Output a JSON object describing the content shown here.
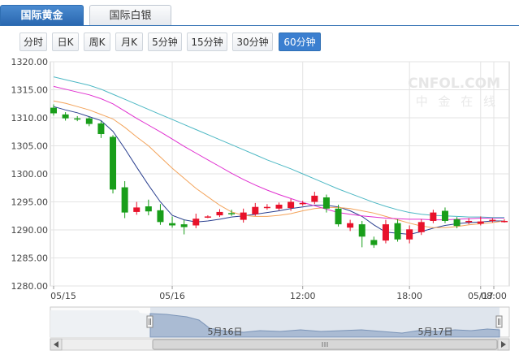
{
  "tabs": [
    {
      "label": "国际黄金",
      "active": true
    },
    {
      "label": "国际白银",
      "active": false
    }
  ],
  "periods": [
    {
      "label": "分时",
      "active": false
    },
    {
      "label": "日K",
      "active": false
    },
    {
      "label": "周K",
      "active": false
    },
    {
      "label": "月K",
      "active": false
    },
    {
      "label": "5分钟",
      "active": false
    },
    {
      "label": "15分钟",
      "active": false
    },
    {
      "label": "30分钟",
      "active": false
    },
    {
      "label": "60分钟",
      "active": true
    }
  ],
  "watermark": {
    "brand": "CNFOL.COM",
    "sub": "中 金 在 线"
  },
  "navigator": {
    "labels": [
      "5月16日",
      "5月17日"
    ],
    "scroll_icon": "grip-icon"
  },
  "colors": {
    "up": "#e8112a",
    "down": "#199e1a",
    "ma5": "#2a3f8f",
    "ma10": "#f3a35a",
    "ma20": "#e02fd0",
    "ma30": "#4db8c4"
  },
  "chart_data": {
    "type": "candlestick",
    "ylim": [
      1280,
      1320
    ],
    "yticks": [
      "1280.00",
      "1285.00",
      "1290.00",
      "1295.00",
      "1300.00",
      "1305.00",
      "1310.00",
      "1315.00",
      "1320.00"
    ],
    "xticks": [
      "05/15",
      "05/16",
      "12:00",
      "18:00",
      "05/17",
      "08:00"
    ],
    "candles": [
      {
        "o": 1311.8,
        "c": 1310.8,
        "h": 1312.4,
        "l": 1310.4
      },
      {
        "o": 1310.6,
        "c": 1309.9,
        "h": 1311.0,
        "l": 1309.5
      },
      {
        "o": 1309.9,
        "c": 1309.8,
        "h": 1310.3,
        "l": 1309.4
      },
      {
        "o": 1309.9,
        "c": 1308.9,
        "h": 1310.2,
        "l": 1308.5
      },
      {
        "o": 1309.0,
        "c": 1307.1,
        "h": 1309.4,
        "l": 1306.4
      },
      {
        "o": 1306.6,
        "c": 1297.2,
        "h": 1306.9,
        "l": 1296.5
      },
      {
        "o": 1297.6,
        "c": 1293.1,
        "h": 1298.7,
        "l": 1292.1
      },
      {
        "o": 1293.2,
        "c": 1294.0,
        "h": 1295.0,
        "l": 1292.7
      },
      {
        "o": 1294.2,
        "c": 1293.3,
        "h": 1295.4,
        "l": 1292.6
      },
      {
        "o": 1293.5,
        "c": 1291.4,
        "h": 1294.6,
        "l": 1290.9
      },
      {
        "o": 1291.2,
        "c": 1290.8,
        "h": 1292.4,
        "l": 1290.4
      },
      {
        "o": 1291.0,
        "c": 1290.5,
        "h": 1291.8,
        "l": 1289.2
      },
      {
        "o": 1290.8,
        "c": 1292.0,
        "h": 1292.9,
        "l": 1290.3
      },
      {
        "o": 1292.3,
        "c": 1292.4,
        "h": 1292.6,
        "l": 1292.1
      },
      {
        "o": 1292.6,
        "c": 1293.2,
        "h": 1293.7,
        "l": 1292.3
      },
      {
        "o": 1293.0,
        "c": 1292.8,
        "h": 1293.6,
        "l": 1292.5
      },
      {
        "o": 1291.8,
        "c": 1293.1,
        "h": 1293.8,
        "l": 1291.3
      },
      {
        "o": 1292.8,
        "c": 1294.1,
        "h": 1294.8,
        "l": 1292.5
      },
      {
        "o": 1293.9,
        "c": 1294.1,
        "h": 1294.6,
        "l": 1293.6
      },
      {
        "o": 1293.8,
        "c": 1294.5,
        "h": 1294.9,
        "l": 1293.5
      },
      {
        "o": 1293.9,
        "c": 1295.0,
        "h": 1295.5,
        "l": 1293.4
      },
      {
        "o": 1294.7,
        "c": 1294.8,
        "h": 1295.2,
        "l": 1294.3
      },
      {
        "o": 1295.0,
        "c": 1296.1,
        "h": 1296.8,
        "l": 1294.6
      },
      {
        "o": 1295.8,
        "c": 1293.8,
        "h": 1296.3,
        "l": 1293.1
      },
      {
        "o": 1293.8,
        "c": 1291.0,
        "h": 1294.5,
        "l": 1290.6
      },
      {
        "o": 1290.4,
        "c": 1291.2,
        "h": 1291.8,
        "l": 1289.8
      },
      {
        "o": 1291.0,
        "c": 1288.8,
        "h": 1291.6,
        "l": 1286.9
      },
      {
        "o": 1288.2,
        "c": 1287.3,
        "h": 1288.8,
        "l": 1286.8
      },
      {
        "o": 1288.1,
        "c": 1291.0,
        "h": 1291.8,
        "l": 1287.6
      },
      {
        "o": 1291.2,
        "c": 1288.3,
        "h": 1291.9,
        "l": 1287.9
      },
      {
        "o": 1288.3,
        "c": 1290.1,
        "h": 1290.8,
        "l": 1287.6
      },
      {
        "o": 1289.6,
        "c": 1291.4,
        "h": 1291.9,
        "l": 1289.1
      },
      {
        "o": 1291.6,
        "c": 1293.1,
        "h": 1293.6,
        "l": 1291.2
      },
      {
        "o": 1293.4,
        "c": 1291.6,
        "h": 1294.0,
        "l": 1291.2
      },
      {
        "o": 1291.9,
        "c": 1290.7,
        "h": 1292.3,
        "l": 1290.3
      },
      {
        "o": 1291.4,
        "c": 1291.6,
        "h": 1292.1,
        "l": 1291.0
      },
      {
        "o": 1291.1,
        "c": 1291.5,
        "h": 1292.4,
        "l": 1290.8
      },
      {
        "o": 1291.7,
        "c": 1291.8,
        "h": 1292.1,
        "l": 1291.3
      },
      {
        "o": 1291.6,
        "c": 1291.6,
        "h": 1291.9,
        "l": 1291.3
      }
    ],
    "ma_series": [
      {
        "key": "ma5",
        "values": [
          1312.0,
          1311.4,
          1310.9,
          1310.2,
          1309.5,
          1307.6,
          1304.5,
          1301.2,
          1298.0,
          1295.0,
          1292.6,
          1291.8,
          1291.4,
          1291.6,
          1291.9,
          1292.3,
          1292.5,
          1292.8,
          1293.1,
          1293.4,
          1293.8,
          1294.1,
          1294.4,
          1294.4,
          1294.1,
          1293.4,
          1292.4,
          1290.9,
          1289.6,
          1289.4,
          1289.2,
          1289.7,
          1290.3,
          1290.8,
          1291.1,
          1291.3,
          1291.4,
          1291.6,
          1291.6
        ]
      },
      {
        "key": "ma10",
        "values": [
          1313.0,
          1312.6,
          1312.0,
          1311.4,
          1310.6,
          1309.8,
          1308.3,
          1306.6,
          1305.0,
          1303.0,
          1301.0,
          1299.2,
          1297.4,
          1295.9,
          1294.4,
          1293.2,
          1292.6,
          1292.4,
          1292.4,
          1292.6,
          1292.9,
          1293.4,
          1293.8,
          1294.0,
          1294.0,
          1293.8,
          1293.4,
          1293.0,
          1292.4,
          1291.8,
          1291.2,
          1290.7,
          1290.4,
          1290.4,
          1290.6,
          1290.9,
          1291.1,
          1291.3,
          1291.6
        ]
      },
      {
        "key": "ma20",
        "values": [
          1315.6,
          1315.1,
          1314.6,
          1314.1,
          1313.4,
          1312.5,
          1311.2,
          1309.9,
          1308.7,
          1307.5,
          1306.2,
          1304.9,
          1303.7,
          1302.5,
          1301.3,
          1300.1,
          1299.0,
          1298.0,
          1297.1,
          1296.3,
          1295.6,
          1294.9,
          1294.3,
          1293.7,
          1293.1,
          1292.8,
          1292.5,
          1292.3,
          1292.1,
          1292.0,
          1291.9,
          1291.9,
          1291.8,
          1291.8,
          1291.9,
          1292.0,
          1292.1,
          1292.1,
          1292.1
        ]
      },
      {
        "key": "ma30",
        "values": [
          1317.3,
          1316.8,
          1316.3,
          1315.8,
          1315.1,
          1314.2,
          1313.3,
          1312.4,
          1311.5,
          1310.6,
          1309.7,
          1308.8,
          1307.9,
          1307.0,
          1306.1,
          1305.2,
          1304.3,
          1303.4,
          1302.5,
          1301.7,
          1300.9,
          1300.0,
          1299.1,
          1298.2,
          1297.3,
          1296.5,
          1295.7,
          1294.9,
          1294.2,
          1293.6,
          1293.1,
          1292.8,
          1292.6,
          1292.5,
          1292.4,
          1292.3,
          1292.3,
          1292.2,
          1292.2
        ]
      }
    ]
  }
}
